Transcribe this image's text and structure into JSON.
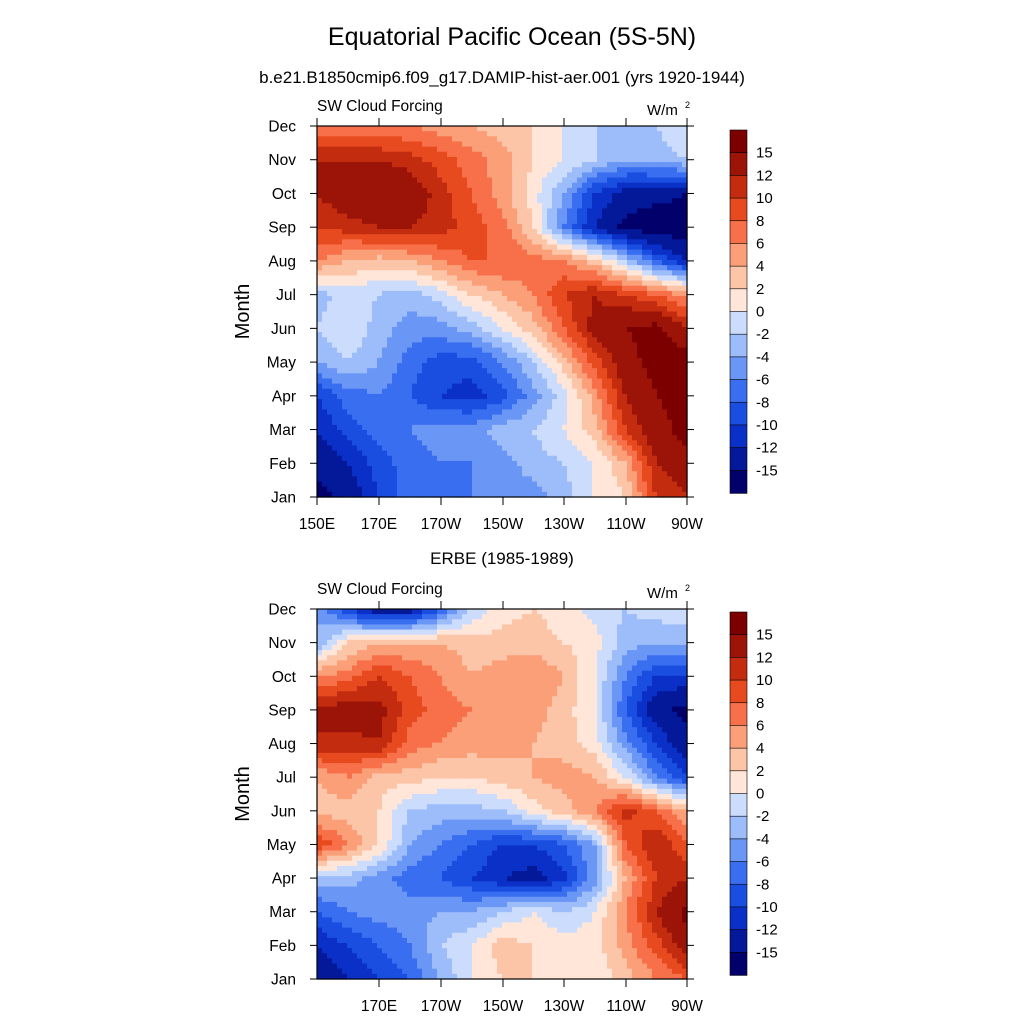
{
  "figure": {
    "title": "Equatorial Pacific Ocean (5S-5N)"
  },
  "colorbar": {
    "levels": [
      -15,
      -12,
      -10,
      -8,
      -6,
      -4,
      -2,
      0,
      2,
      4,
      6,
      8,
      10,
      12,
      15
    ],
    "labels": [
      "15",
      "12",
      "10",
      "8",
      "6",
      "4",
      "2",
      "0",
      "-2",
      "-4",
      "-6",
      "-8",
      "-10",
      "-12",
      "-15"
    ],
    "colors": [
      "#02006b",
      "#04189a",
      "#0a30c8",
      "#1a4ee0",
      "#3a6ef0",
      "#6a96f6",
      "#9cbcfa",
      "#ccdcfc",
      "#ffe6d8",
      "#fdc5a8",
      "#fb9f78",
      "#f7704a",
      "#e84a20",
      "#c42c10",
      "#9c1408",
      "#7c0000"
    ]
  },
  "chart_data": [
    {
      "type": "heatmap",
      "title": "b.e21.B1850cmip6.f09_g17.DAMIP-hist-aer.001 (yrs 1920-1944)",
      "left_label": "SW Cloud Forcing",
      "units_label": "W/m",
      "units_sup": "2",
      "xlabel": "",
      "ylabel": "Month",
      "x_tick_labels": [
        "150E",
        "170E",
        "170W",
        "150W",
        "130W",
        "110W",
        "90W"
      ],
      "y_tick_labels": [
        "Jan",
        "Feb",
        "Mar",
        "Apr",
        "May",
        "Jun",
        "Jul",
        "Aug",
        "Sep",
        "Oct",
        "Nov",
        "Dec"
      ],
      "x": [
        150,
        160,
        170,
        180,
        190,
        200,
        210,
        220,
        230,
        240,
        250,
        260,
        270
      ],
      "y": [
        1,
        2,
        3,
        4,
        5,
        6,
        7,
        8,
        9,
        10,
        11,
        12
      ],
      "z": [
        [
          -16,
          -14,
          -10,
          -7,
          -7,
          -6,
          -5,
          -5,
          -3,
          0,
          2,
          10,
          12
        ],
        [
          -14,
          -12,
          -9,
          -7,
          -6,
          -6,
          -5,
          -3,
          -2,
          0,
          4,
          12,
          14
        ],
        [
          -12,
          -9,
          -7,
          -6,
          -5,
          -5,
          -3,
          -2,
          0,
          3,
          10,
          14,
          16
        ],
        [
          -10,
          -7,
          -6,
          -8,
          -10,
          -11,
          -9,
          -5,
          -1,
          5,
          12,
          15,
          16
        ],
        [
          -4,
          -2,
          -4,
          -7,
          -9,
          -9,
          -6,
          -2,
          3,
          9,
          14,
          16,
          17
        ],
        [
          -2,
          0,
          -3,
          -5,
          -5,
          -3,
          0,
          3,
          8,
          13,
          15,
          16,
          12
        ],
        [
          -3,
          -1,
          -2,
          -3,
          -1,
          2,
          4,
          6,
          10,
          12,
          10,
          8,
          5
        ],
        [
          6,
          4,
          3,
          4,
          6,
          8,
          8,
          7,
          6,
          3,
          -2,
          -8,
          -12
        ],
        [
          10,
          11,
          12,
          12,
          11,
          9,
          7,
          2,
          -6,
          -12,
          -16,
          -17,
          -17
        ],
        [
          12,
          14,
          15,
          14,
          11,
          8,
          5,
          1,
          -4,
          -10,
          -13,
          -14,
          -15
        ],
        [
          12,
          12,
          12,
          11,
          9,
          7,
          5,
          2,
          0,
          -2,
          -4,
          -3,
          -2
        ],
        [
          6,
          6,
          6,
          6,
          5,
          4,
          3,
          2,
          0,
          -2,
          -3,
          -2,
          0
        ]
      ]
    },
    {
      "type": "heatmap",
      "title": "ERBE (1985-1989)",
      "left_label": "SW Cloud Forcing",
      "units_label": "W/m",
      "units_sup": "2",
      "xlabel": "",
      "ylabel": "Month",
      "x_tick_labels": [
        "170E",
        "170W",
        "150W",
        "130W",
        "110W",
        "90W"
      ],
      "y_tick_labels": [
        "Jan",
        "Feb",
        "Mar",
        "Apr",
        "May",
        "Jun",
        "Jul",
        "Aug",
        "Sep",
        "Oct",
        "Nov",
        "Dec"
      ],
      "x": [
        150,
        160,
        170,
        180,
        190,
        200,
        210,
        220,
        230,
        240,
        250,
        260,
        270
      ],
      "y": [
        1,
        2,
        3,
        4,
        5,
        6,
        7,
        8,
        9,
        10,
        11,
        12
      ],
      "z": [
        [
          -14,
          -12,
          -10,
          -8,
          -4,
          0,
          2,
          2,
          1,
          0,
          3,
          6,
          8
        ],
        [
          -12,
          -10,
          -8,
          -6,
          -2,
          0,
          3,
          2,
          1,
          1,
          5,
          9,
          14
        ],
        [
          -8,
          -6,
          -5,
          -5,
          -4,
          -4,
          -2,
          0,
          -2,
          0,
          6,
          12,
          16
        ],
        [
          -3,
          -3,
          -5,
          -7,
          -8,
          -10,
          -12,
          -13,
          -11,
          -5,
          4,
          10,
          12
        ],
        [
          10,
          6,
          2,
          -4,
          -6,
          -8,
          -10,
          -10,
          -8,
          -4,
          8,
          12,
          8
        ],
        [
          3,
          3,
          2,
          -2,
          -3,
          -3,
          -2,
          1,
          3,
          6,
          11,
          8,
          4
        ],
        [
          4,
          6,
          3,
          3,
          2,
          2,
          3,
          4,
          5,
          4,
          0,
          -6,
          -10
        ],
        [
          12,
          11,
          12,
          7,
          6,
          5,
          5,
          4,
          3,
          1,
          -5,
          -10,
          -14
        ],
        [
          12,
          14,
          13,
          9,
          7,
          6,
          5,
          5,
          3,
          0,
          -8,
          -14,
          -16
        ],
        [
          6,
          7,
          10,
          8,
          6,
          4,
          5,
          6,
          4,
          0,
          -6,
          -10,
          -10
        ],
        [
          -4,
          2,
          4,
          4,
          4,
          3,
          3,
          3,
          2,
          1,
          -3,
          -4,
          -4
        ],
        [
          -4,
          -10,
          -14,
          -14,
          -8,
          -2,
          1,
          2,
          1,
          -1,
          -2,
          -1,
          0
        ]
      ]
    }
  ]
}
